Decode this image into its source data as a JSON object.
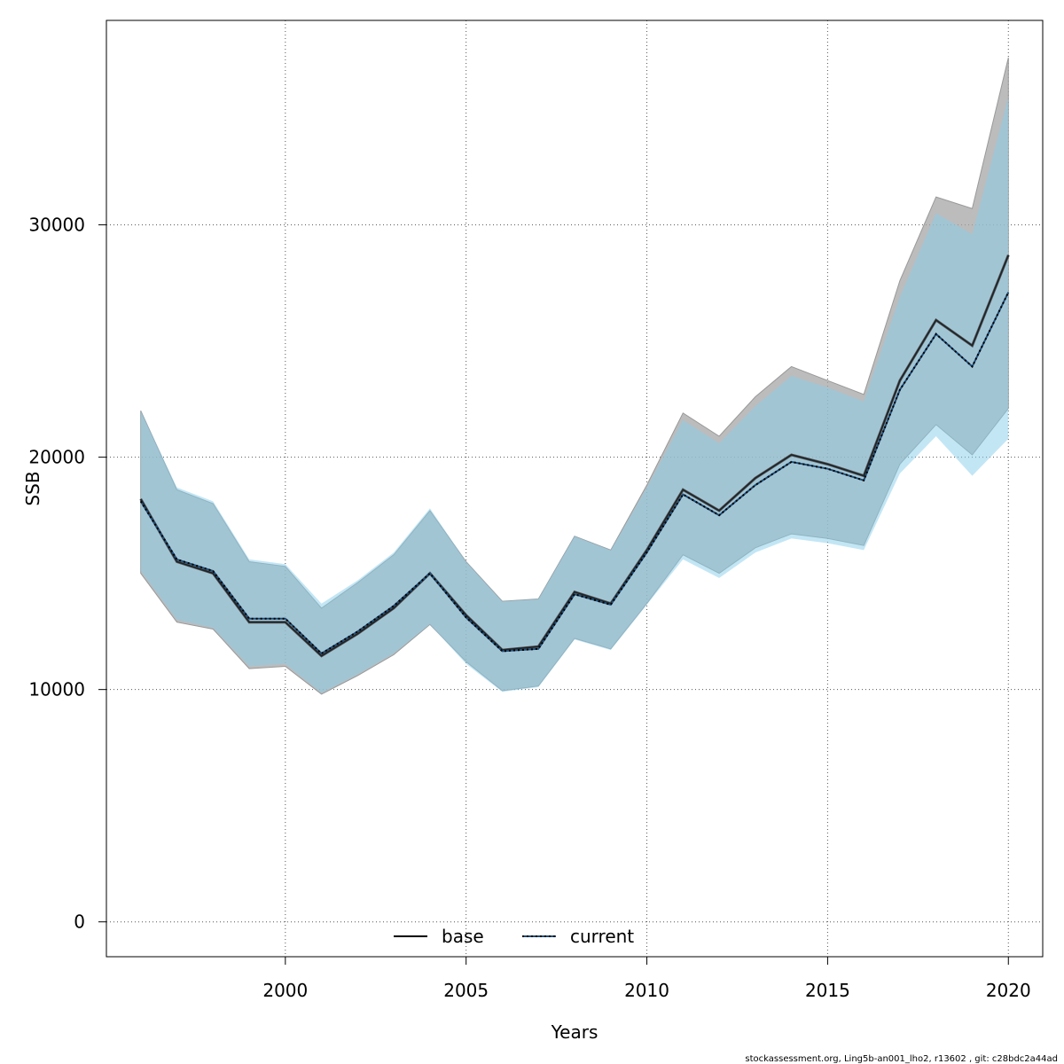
{
  "chart_data": {
    "type": "area",
    "xlabel": "Years",
    "ylabel": "SSB",
    "xlim": [
      1995.05,
      2020.95
    ],
    "ylim": [
      -1500,
      38800
    ],
    "xticks": [
      "2000",
      "2005",
      "2010",
      "2015",
      "2020"
    ],
    "xtick_values": [
      2000,
      2005,
      2010,
      2015,
      2020
    ],
    "yticks": [
      "0",
      "10000",
      "20000",
      "30000"
    ],
    "ytick_values": [
      0,
      10000,
      20000,
      30000
    ],
    "grid": true,
    "legend_placement": "bottom",
    "footer": "stockassessment.org, Ling5b-an001_lho2, r13602 , git: c28bdc2a44ad",
    "colors": {
      "base_band": "#a6a6a6",
      "current_band": "#87ceeb",
      "current_line": "#1f4e79"
    },
    "x": [
      1996,
      1997,
      1998,
      1999,
      2000,
      2001,
      2002,
      2003,
      2004,
      2005,
      2006,
      2007,
      2008,
      2009,
      2010,
      2011,
      2012,
      2013,
      2014,
      2015,
      2016,
      2017,
      2018,
      2019,
      2020
    ],
    "series": [
      {
        "name": "base",
        "values": [
          18200,
          15500,
          15000,
          12900,
          12900,
          11450,
          12400,
          13500,
          15000,
          13200,
          11700,
          11850,
          14200,
          13700,
          16000,
          18600,
          17700,
          19100,
          20100,
          19700,
          19200,
          23300,
          25900,
          24800,
          28700
        ],
        "lower": [
          15000,
          12900,
          12600,
          10900,
          11000,
          9800,
          10600,
          11500,
          12800,
          11200,
          9950,
          10150,
          12200,
          11750,
          13700,
          15800,
          15000,
          16100,
          16700,
          16500,
          16200,
          19700,
          21400,
          20100,
          22100
        ],
        "upper": [
          22000,
          18600,
          18000,
          15500,
          15300,
          13500,
          14600,
          15800,
          17700,
          15500,
          13800,
          13900,
          16600,
          16000,
          18800,
          21900,
          20900,
          22600,
          23900,
          23300,
          22700,
          27600,
          31200,
          30700,
          37200
        ]
      },
      {
        "name": "current",
        "values": [
          18100,
          15600,
          15100,
          13050,
          13050,
          11550,
          12500,
          13600,
          15000,
          13100,
          11650,
          11750,
          14100,
          13650,
          15900,
          18400,
          17500,
          18800,
          19800,
          19500,
          19000,
          22900,
          25300,
          23900,
          27100
        ],
        "lower": [
          15100,
          13000,
          12650,
          11000,
          11100,
          9850,
          10650,
          11550,
          12800,
          11100,
          9900,
          10100,
          12150,
          11700,
          13650,
          15600,
          14800,
          15900,
          16500,
          16300,
          16000,
          19300,
          20900,
          19200,
          20800
        ],
        "upper": [
          22000,
          18700,
          18100,
          15600,
          15400,
          13700,
          14700,
          15900,
          17800,
          15500,
          13800,
          13900,
          16600,
          16000,
          18700,
          21600,
          20600,
          22200,
          23500,
          23000,
          22400,
          26900,
          30500,
          29600,
          35500
        ]
      }
    ]
  }
}
